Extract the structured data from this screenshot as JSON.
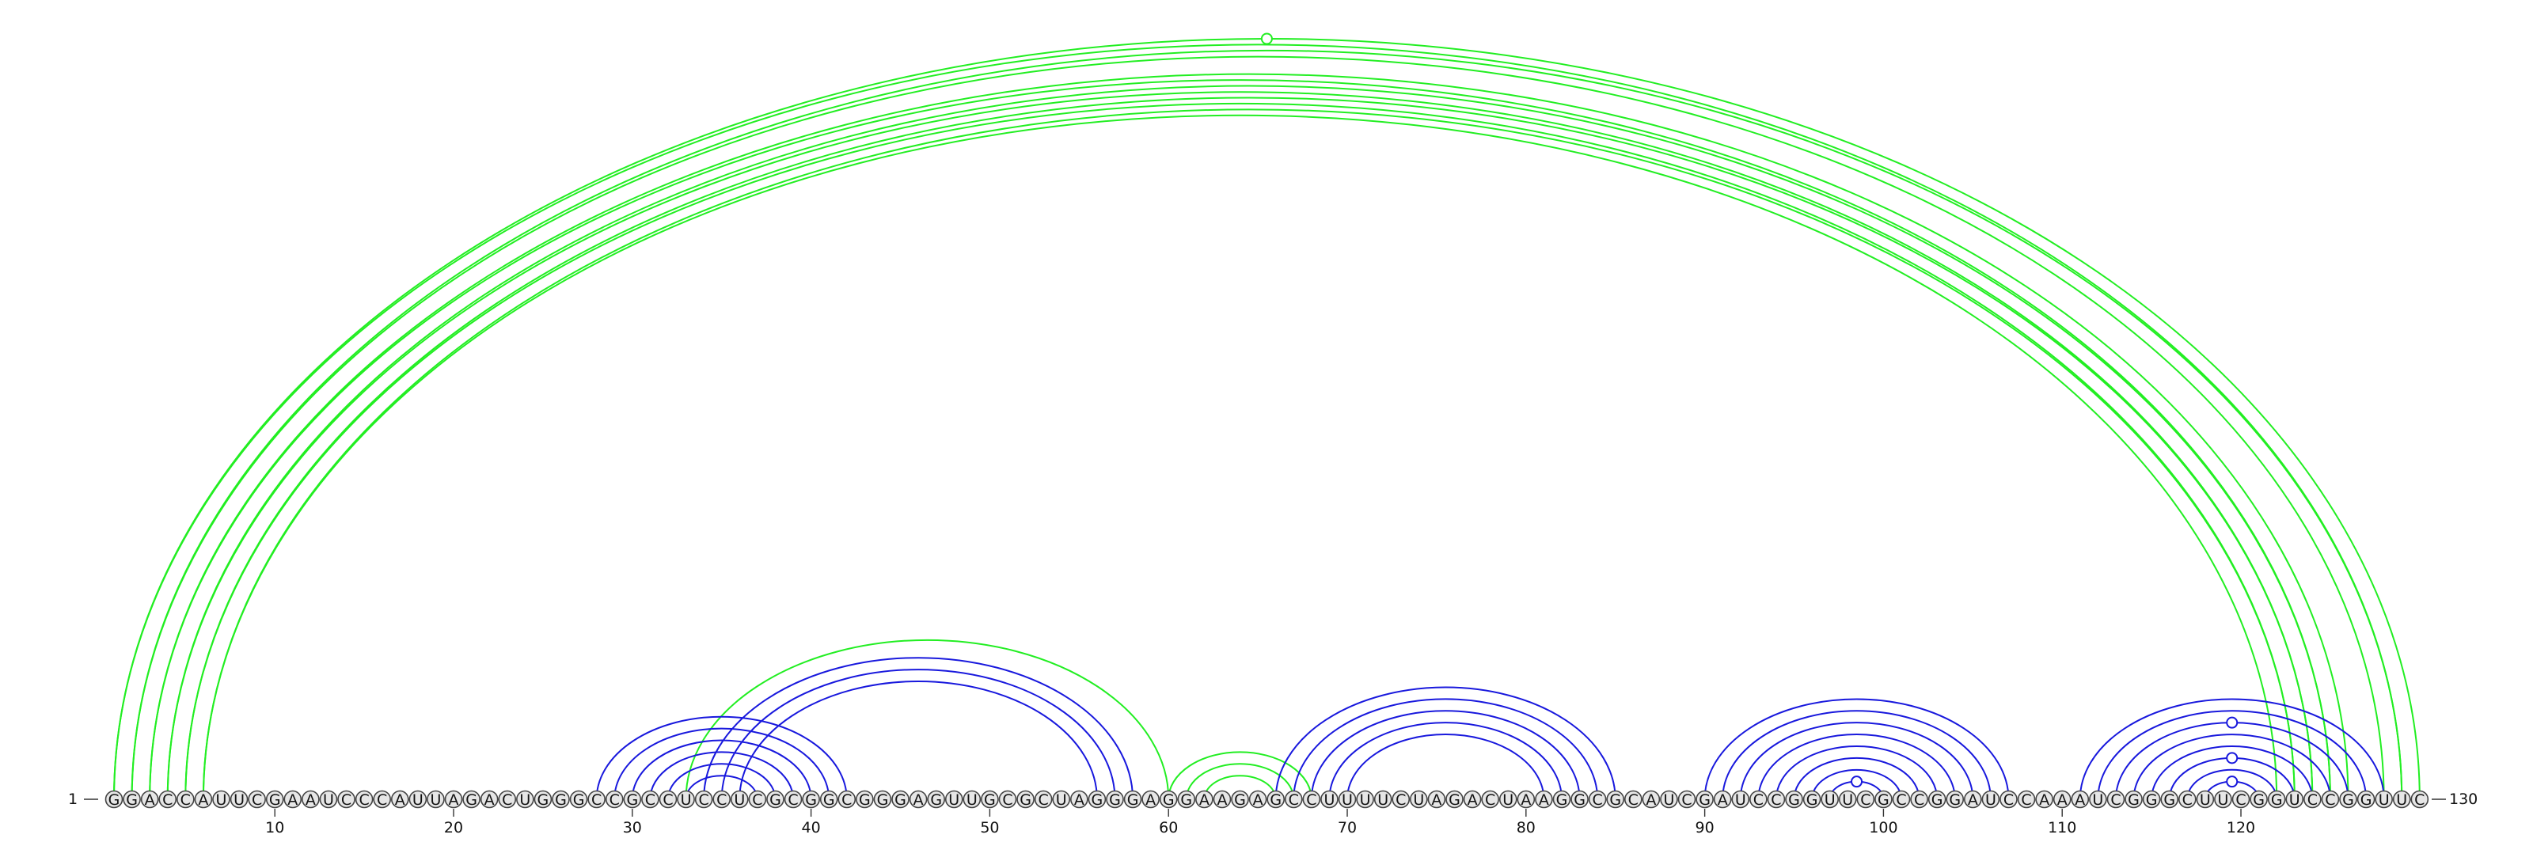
{
  "sequence": "GGACCAUUCGAAUCCCAUUAGACUGGGCCGCCUCCUCGCGGCGGGAGUUGCGCUAGGGAGGAAGAGCCUUUUCUAGACUAAGGCGCAUCGAUCCGGUUCGCCGGAUCCAAAUCGGGCUUCGGUCCGGUUC",
  "start_label": "1",
  "end_label": "130",
  "ticks": [
    "10",
    "20",
    "30",
    "40",
    "50",
    "60",
    "70",
    "80",
    "90",
    "100",
    "110",
    "120"
  ],
  "colors": {
    "green": "#22ee22",
    "blue": "#1818dd"
  },
  "arc_groups": [
    {
      "name": "pseudoknot-long",
      "color": "green",
      "pairs": [
        [
          1,
          130
        ],
        [
          2,
          129
        ],
        [
          3,
          126
        ],
        [
          4,
          125
        ],
        [
          5,
          124
        ],
        [
          6,
          123
        ]
      ]
    },
    {
      "name": "pseudoknot-long-inner",
      "color": "green",
      "pairs": [
        [
          1,
          129
        ],
        [
          2,
          128
        ],
        [
          3,
          125
        ],
        [
          4,
          124
        ],
        [
          5,
          123
        ],
        [
          6,
          122
        ]
      ]
    },
    {
      "name": "pseudoknot-mid",
      "color": "green",
      "pairs": [
        [
          33,
          60
        ]
      ]
    },
    {
      "name": "pseudoknot-small",
      "color": "green",
      "pairs": [
        [
          60,
          68
        ],
        [
          61,
          67
        ],
        [
          62,
          66
        ]
      ]
    },
    {
      "name": "helix-28-42",
      "color": "blue",
      "pairs": [
        [
          28,
          42
        ],
        [
          29,
          41
        ],
        [
          30,
          40
        ],
        [
          31,
          39
        ],
        [
          32,
          38
        ],
        [
          33,
          37
        ]
      ]
    },
    {
      "name": "helix-34-58",
      "color": "blue",
      "pairs": [
        [
          34,
          58
        ],
        [
          35,
          57
        ],
        [
          36,
          56
        ]
      ]
    },
    {
      "name": "helix-66-85",
      "color": "blue",
      "pairs": [
        [
          66,
          85
        ],
        [
          67,
          84
        ],
        [
          68,
          83
        ],
        [
          69,
          82
        ],
        [
          70,
          81
        ]
      ]
    },
    {
      "name": "helix-90-107",
      "color": "blue",
      "pairs": [
        [
          90,
          107
        ],
        [
          91,
          106
        ],
        [
          92,
          105
        ],
        [
          93,
          104
        ],
        [
          94,
          103
        ],
        [
          95,
          102
        ],
        [
          96,
          101
        ],
        [
          97,
          100
        ]
      ]
    },
    {
      "name": "helix-111-128",
      "color": "blue",
      "pairs": [
        [
          111,
          128
        ],
        [
          112,
          127
        ],
        [
          113,
          126
        ],
        [
          114,
          125
        ],
        [
          115,
          124
        ],
        [
          116,
          123
        ],
        [
          117,
          122
        ],
        [
          118,
          121
        ]
      ]
    }
  ],
  "markers": [
    {
      "color": "green",
      "center": 65.5,
      "radius_nt": 64.5
    },
    {
      "color": "blue",
      "center": 98.5,
      "radius_nt": 1.5
    },
    {
      "color": "blue",
      "center": 119.5,
      "radius_nt": 1.5
    },
    {
      "color": "blue",
      "center": 119.5,
      "radius_nt": 3.5
    },
    {
      "color": "blue",
      "center": 119.5,
      "radius_nt": 6.5
    }
  ]
}
